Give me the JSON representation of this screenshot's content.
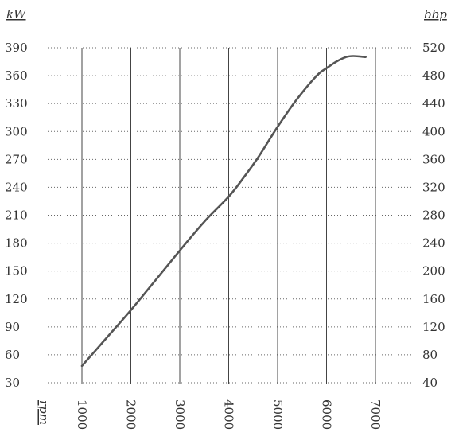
{
  "chart_data": {
    "type": "line",
    "title": "",
    "y_left_label": "kW",
    "y_right_label": "bbp",
    "x_label": "rpm",
    "x_ticks": [
      1000,
      2000,
      3000,
      4000,
      5000,
      6000,
      7000
    ],
    "y_left_ticks": [
      30,
      60,
      90,
      120,
      150,
      180,
      210,
      240,
      270,
      300,
      330,
      360,
      390
    ],
    "y_right_ticks": [
      40,
      80,
      120,
      160,
      200,
      240,
      280,
      320,
      360,
      400,
      440,
      480,
      520
    ],
    "xlim": [
      1000,
      7000
    ],
    "y_left_lim": [
      30,
      390
    ],
    "grid": "vertical solid, horizontal dotted",
    "series": [
      {
        "color": "#555555",
        "x": [
          1000,
          1500,
          2000,
          2500,
          3000,
          3500,
          4000,
          4300,
          4600,
          5000,
          5400,
          5800,
          6000,
          6200,
          6400,
          6550,
          6800
        ],
        "y": [
          48,
          78,
          108,
          140,
          172,
          203,
          230,
          250,
          272,
          305,
          335,
          360,
          368,
          375,
          380,
          381,
          380
        ]
      }
    ]
  }
}
